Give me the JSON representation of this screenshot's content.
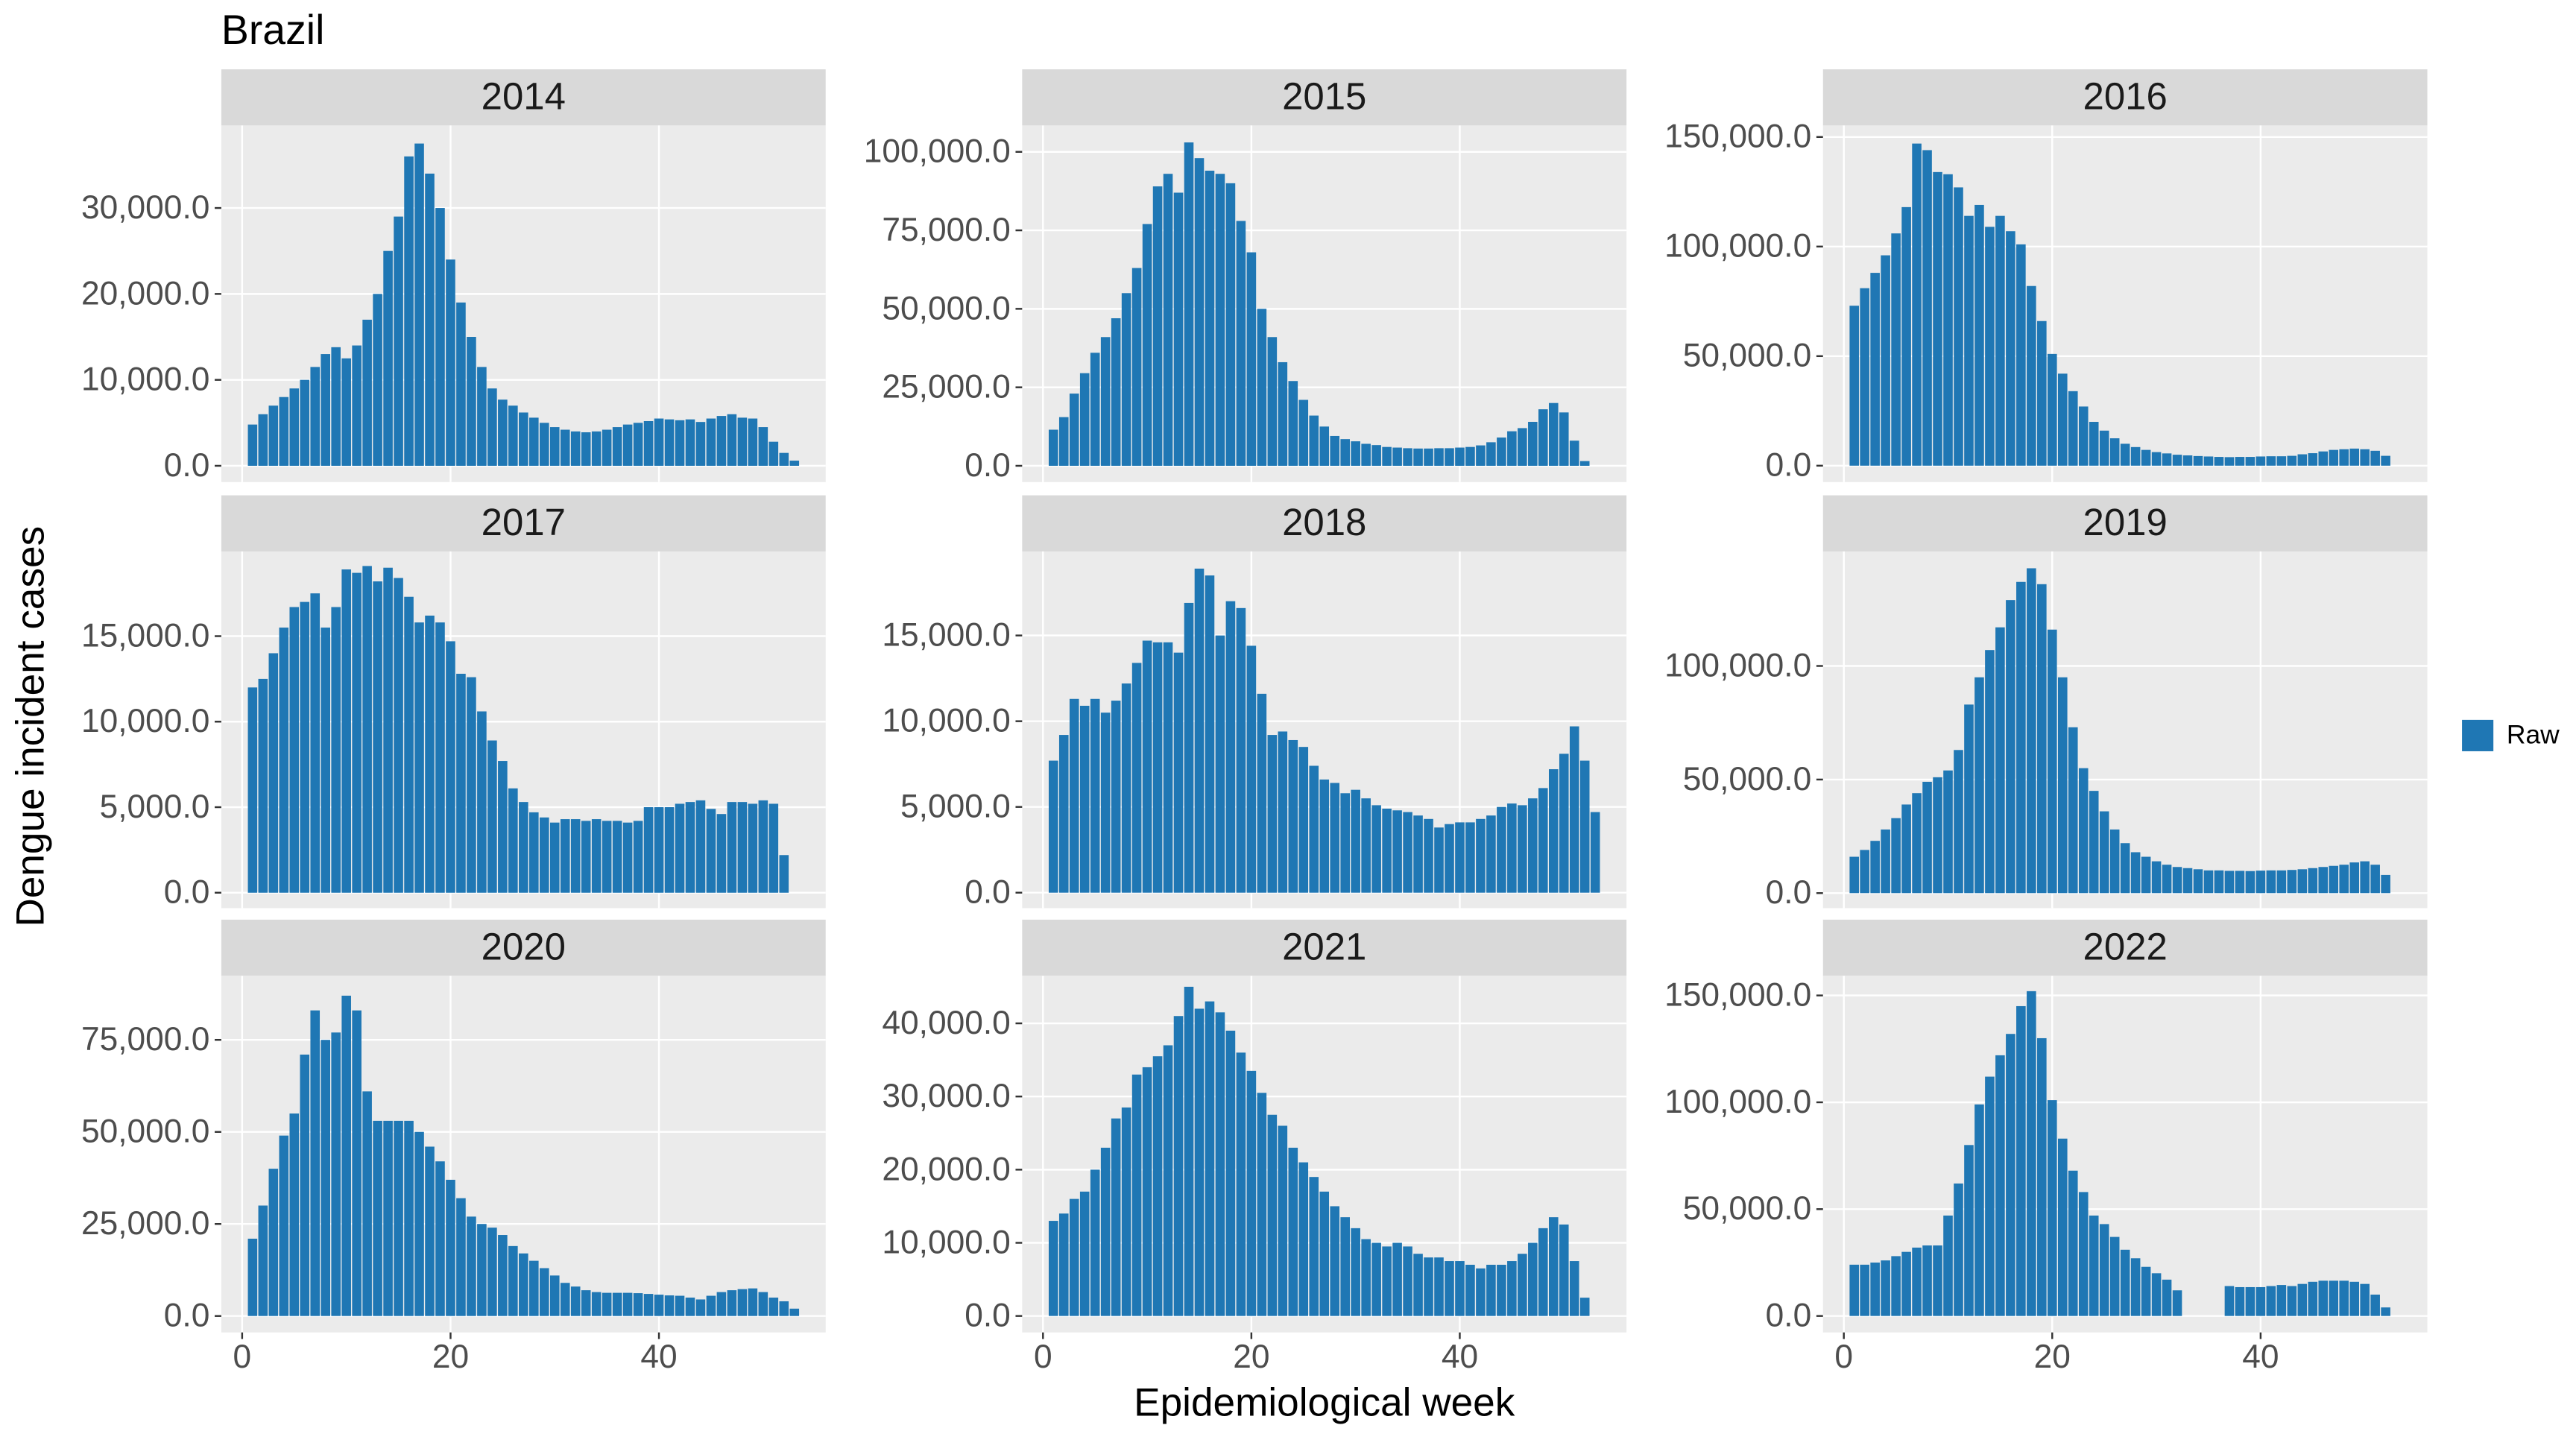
{
  "title": "Brazil",
  "x_label": "Epidemiological week",
  "y_label": "Dengue incident cases",
  "legend": {
    "labels": [
      "Raw"
    ],
    "colors": [
      "#1f77b4"
    ],
    "position": "right"
  },
  "chart_data": [
    {
      "type": "bar",
      "title": "2014",
      "x": [
        1,
        2,
        3,
        4,
        5,
        6,
        7,
        8,
        9,
        10,
        11,
        12,
        13,
        14,
        15,
        16,
        17,
        18,
        19,
        20,
        21,
        22,
        23,
        24,
        25,
        26,
        27,
        28,
        29,
        30,
        31,
        32,
        33,
        34,
        35,
        36,
        37,
        38,
        39,
        40,
        41,
        42,
        43,
        44,
        45,
        46,
        47,
        48,
        49,
        50,
        51,
        52,
        53
      ],
      "values": [
        4800,
        6000,
        7000,
        8000,
        9000,
        10000,
        11500,
        13000,
        13800,
        12500,
        14000,
        17000,
        20000,
        25000,
        29000,
        36000,
        37500,
        34000,
        30000,
        24000,
        19000,
        15000,
        11500,
        9000,
        7700,
        7000,
        6200,
        5600,
        5000,
        4500,
        4200,
        4000,
        3900,
        4000,
        4200,
        4500,
        4800,
        5000,
        5200,
        5500,
        5400,
        5300,
        5400,
        5100,
        5500,
        5800,
        6000,
        5600,
        5500,
        4500,
        2800,
        1500,
        600
      ],
      "xlim": [
        -2,
        56
      ],
      "xticks": [
        0,
        20,
        40
      ],
      "ylim": [
        -1900,
        39600
      ],
      "yticks": [
        {
          "value": 0,
          "label": "0.0"
        },
        {
          "value": 10000,
          "label": "10,000.0"
        },
        {
          "value": 20000,
          "label": "20,000.0"
        },
        {
          "value": 30000,
          "label": "30,000.0"
        }
      ]
    },
    {
      "type": "bar",
      "title": "2015",
      "x": [
        1,
        2,
        3,
        4,
        5,
        6,
        7,
        8,
        9,
        10,
        11,
        12,
        13,
        14,
        15,
        16,
        17,
        18,
        19,
        20,
        21,
        22,
        23,
        24,
        25,
        26,
        27,
        28,
        29,
        30,
        31,
        32,
        33,
        34,
        35,
        36,
        37,
        38,
        39,
        40,
        41,
        42,
        43,
        44,
        45,
        46,
        47,
        48,
        49,
        50,
        51,
        52
      ],
      "values": [
        11500,
        15500,
        23000,
        29500,
        36000,
        41000,
        47000,
        55000,
        63000,
        77000,
        89000,
        93000,
        87000,
        103000,
        98000,
        94000,
        93000,
        90000,
        78000,
        68000,
        50000,
        41000,
        33000,
        27000,
        21000,
        16000,
        12500,
        9500,
        8500,
        7800,
        7000,
        6600,
        6000,
        5800,
        5600,
        5500,
        5500,
        5600,
        5600,
        5800,
        6000,
        6500,
        7500,
        9000,
        11000,
        12000,
        14000,
        18000,
        20000,
        17000,
        8000,
        1500
      ],
      "xlim": [
        -2,
        56
      ],
      "xticks": [
        0,
        20,
        40
      ],
      "ylim": [
        -5200,
        108400
      ],
      "yticks": [
        {
          "value": 0,
          "label": "0.0"
        },
        {
          "value": 25000,
          "label": "25,000.0"
        },
        {
          "value": 50000,
          "label": "50,000.0"
        },
        {
          "value": 75000,
          "label": "75,000.0"
        },
        {
          "value": 100000,
          "label": "100,000.0"
        }
      ]
    },
    {
      "type": "bar",
      "title": "2016",
      "x": [
        1,
        2,
        3,
        4,
        5,
        6,
        7,
        8,
        9,
        10,
        11,
        12,
        13,
        14,
        15,
        16,
        17,
        18,
        19,
        20,
        21,
        22,
        23,
        24,
        25,
        26,
        27,
        28,
        29,
        30,
        31,
        32,
        33,
        34,
        35,
        36,
        37,
        38,
        39,
        40,
        41,
        42,
        43,
        44,
        45,
        46,
        47,
        48,
        49,
        50,
        51,
        52
      ],
      "values": [
        73000,
        81000,
        88000,
        96000,
        106000,
        118000,
        147000,
        144000,
        134000,
        133000,
        127000,
        114000,
        119000,
        109000,
        114000,
        107000,
        101000,
        82000,
        66000,
        51000,
        42000,
        34000,
        27000,
        20000,
        16000,
        12500,
        10000,
        8500,
        7200,
        6200,
        5600,
        5000,
        4700,
        4400,
        4200,
        4000,
        3900,
        4000,
        4000,
        4200,
        4300,
        4300,
        4500,
        5200,
        5700,
        6500,
        7200,
        7500,
        7800,
        7500,
        6800,
        4500
      ],
      "xlim": [
        -2,
        56
      ],
      "xticks": [
        0,
        20,
        40
      ],
      "ylim": [
        -7500,
        155250
      ],
      "yticks": [
        {
          "value": 0,
          "label": "0.0"
        },
        {
          "value": 50000,
          "label": "50,000.0"
        },
        {
          "value": 100000,
          "label": "100,000.0"
        },
        {
          "value": 150000,
          "label": "150,000.0"
        }
      ]
    },
    {
      "type": "bar",
      "title": "2017",
      "x": [
        1,
        2,
        3,
        4,
        5,
        6,
        7,
        8,
        9,
        10,
        11,
        12,
        13,
        14,
        15,
        16,
        17,
        18,
        19,
        20,
        21,
        22,
        23,
        24,
        25,
        26,
        27,
        28,
        29,
        30,
        31,
        32,
        33,
        34,
        35,
        36,
        37,
        38,
        39,
        40,
        41,
        42,
        43,
        44,
        45,
        46,
        47,
        48,
        49,
        50,
        51,
        52
      ],
      "values": [
        12000,
        12500,
        14000,
        15500,
        16700,
        17000,
        17500,
        15500,
        16700,
        18900,
        18700,
        19100,
        18200,
        19000,
        18400,
        17300,
        15800,
        16200,
        15800,
        14700,
        12800,
        12600,
        10600,
        8900,
        7700,
        6100,
        5300,
        4700,
        4400,
        4100,
        4300,
        4300,
        4200,
        4300,
        4200,
        4200,
        4100,
        4200,
        5000,
        5000,
        5000,
        5200,
        5300,
        5400,
        4900,
        4600,
        5300,
        5300,
        5200,
        5400,
        5200,
        2200
      ],
      "xlim": [
        -2,
        56
      ],
      "xticks": [
        0,
        20,
        40
      ],
      "ylim": [
        -900,
        19950
      ],
      "yticks": [
        {
          "value": 0,
          "label": "0.0"
        },
        {
          "value": 5000,
          "label": "5,000.0"
        },
        {
          "value": 10000,
          "label": "10,000.0"
        },
        {
          "value": 15000,
          "label": "15,000.0"
        }
      ]
    },
    {
      "type": "bar",
      "title": "2018",
      "x": [
        1,
        2,
        3,
        4,
        5,
        6,
        7,
        8,
        9,
        10,
        11,
        12,
        13,
        14,
        15,
        16,
        17,
        18,
        19,
        20,
        21,
        22,
        23,
        24,
        25,
        26,
        27,
        28,
        29,
        30,
        31,
        32,
        33,
        34,
        35,
        36,
        37,
        38,
        39,
        40,
        41,
        42,
        43,
        44,
        45,
        46,
        47,
        48,
        49,
        50,
        51,
        52,
        53
      ],
      "values": [
        7700,
        9200,
        11300,
        10900,
        11300,
        10500,
        11200,
        12200,
        13400,
        14700,
        14600,
        14600,
        14000,
        16900,
        18900,
        18500,
        15000,
        17000,
        16600,
        14400,
        11600,
        9200,
        9400,
        8900,
        8500,
        7400,
        6600,
        6400,
        5800,
        6000,
        5500,
        5100,
        4900,
        4800,
        4700,
        4500,
        4300,
        3800,
        4000,
        4100,
        4100,
        4300,
        4500,
        5000,
        5200,
        5100,
        5500,
        6100,
        7200,
        8100,
        9700,
        7700,
        4700
      ],
      "xlim": [
        -2,
        56
      ],
      "xticks": [
        0,
        20,
        40
      ],
      "ylim": [
        -900,
        19900
      ],
      "yticks": [
        {
          "value": 0,
          "label": "0.0"
        },
        {
          "value": 5000,
          "label": "5,000.0"
        },
        {
          "value": 10000,
          "label": "10,000.0"
        },
        {
          "value": 15000,
          "label": "15,000.0"
        }
      ]
    },
    {
      "type": "bar",
      "title": "2019",
      "x": [
        1,
        2,
        3,
        4,
        5,
        6,
        7,
        8,
        9,
        10,
        11,
        12,
        13,
        14,
        15,
        16,
        17,
        18,
        19,
        20,
        21,
        22,
        23,
        24,
        25,
        26,
        27,
        28,
        29,
        30,
        31,
        32,
        33,
        34,
        35,
        36,
        37,
        38,
        39,
        40,
        41,
        42,
        43,
        44,
        45,
        46,
        47,
        48,
        49,
        50,
        51,
        52
      ],
      "values": [
        16000,
        19000,
        23000,
        28000,
        33000,
        39000,
        44000,
        49000,
        51000,
        54000,
        63000,
        83000,
        95000,
        107000,
        117000,
        129000,
        137000,
        143000,
        136000,
        116000,
        95000,
        73000,
        55000,
        45000,
        36000,
        28000,
        22000,
        18000,
        16000,
        14000,
        12500,
        11500,
        11000,
        10500,
        10000,
        10000,
        9800,
        9800,
        9700,
        9900,
        10000,
        10000,
        10200,
        10500,
        11000,
        11500,
        12000,
        12500,
        13500,
        14000,
        12500,
        8000
      ],
      "xlim": [
        -2,
        56
      ],
      "xticks": [
        0,
        20,
        40
      ],
      "ylim": [
        -6600,
        150400
      ],
      "yticks": [
        {
          "value": 0,
          "label": "0.0"
        },
        {
          "value": 50000,
          "label": "50,000.0"
        },
        {
          "value": 100000,
          "label": "100,000.0"
        }
      ]
    },
    {
      "type": "bar",
      "title": "2020",
      "x": [
        1,
        2,
        3,
        4,
        5,
        6,
        7,
        8,
        9,
        10,
        11,
        12,
        13,
        14,
        15,
        16,
        17,
        18,
        19,
        20,
        21,
        22,
        23,
        24,
        25,
        26,
        27,
        28,
        29,
        30,
        31,
        32,
        33,
        34,
        35,
        36,
        37,
        38,
        39,
        40,
        41,
        42,
        43,
        44,
        45,
        46,
        47,
        48,
        49,
        50,
        51,
        52,
        53
      ],
      "values": [
        21000,
        30000,
        40000,
        49000,
        55000,
        71000,
        83000,
        75000,
        77000,
        87000,
        83000,
        61000,
        53000,
        53000,
        53000,
        53000,
        50000,
        46000,
        42000,
        37000,
        32000,
        27000,
        25000,
        24000,
        22000,
        19000,
        17000,
        15000,
        13000,
        11000,
        9000,
        8000,
        7000,
        6500,
        6300,
        6300,
        6300,
        6200,
        6000,
        5800,
        5600,
        5500,
        5000,
        4500,
        5500,
        6500,
        7000,
        7300,
        7500,
        6500,
        5000,
        4000,
        2000
      ],
      "xlim": [
        -2,
        56
      ],
      "xticks": [
        0,
        20,
        40
      ],
      "ylim": [
        -4460,
        92400
      ],
      "yticks": [
        {
          "value": 0,
          "label": "0.0"
        },
        {
          "value": 25000,
          "label": "25,000.0"
        },
        {
          "value": 50000,
          "label": "50,000.0"
        },
        {
          "value": 75000,
          "label": "75,000.0"
        }
      ]
    },
    {
      "type": "bar",
      "title": "2021",
      "x": [
        1,
        2,
        3,
        4,
        5,
        6,
        7,
        8,
        9,
        10,
        11,
        12,
        13,
        14,
        15,
        16,
        17,
        18,
        19,
        20,
        21,
        22,
        23,
        24,
        25,
        26,
        27,
        28,
        29,
        30,
        31,
        32,
        33,
        34,
        35,
        36,
        37,
        38,
        39,
        40,
        41,
        42,
        43,
        44,
        45,
        46,
        47,
        48,
        49,
        50,
        51,
        52
      ],
      "values": [
        13000,
        14000,
        16000,
        17000,
        20000,
        23000,
        27000,
        28500,
        33000,
        34000,
        35500,
        37000,
        41000,
        45000,
        42000,
        43000,
        41500,
        39000,
        36000,
        33500,
        30500,
        27500,
        26000,
        23000,
        21000,
        19000,
        17000,
        15000,
        13500,
        12000,
        10500,
        10000,
        9500,
        10000,
        9500,
        8500,
        8000,
        8000,
        7500,
        7500,
        7000,
        6500,
        7000,
        7000,
        7500,
        8500,
        10000,
        12000,
        13500,
        12500,
        7500,
        2500
      ],
      "xlim": [
        -2,
        56
      ],
      "xticks": [
        0,
        20,
        40
      ],
      "ylim": [
        -2250,
        46500
      ],
      "yticks": [
        {
          "value": 0,
          "label": "0.0"
        },
        {
          "value": 10000,
          "label": "10,000.0"
        },
        {
          "value": 20000,
          "label": "20,000.0"
        },
        {
          "value": 30000,
          "label": "30,000.0"
        },
        {
          "value": 40000,
          "label": "40,000.0"
        }
      ]
    },
    {
      "type": "bar",
      "title": "2022",
      "x": [
        1,
        2,
        3,
        4,
        5,
        6,
        7,
        8,
        9,
        10,
        11,
        12,
        13,
        14,
        15,
        16,
        17,
        18,
        19,
        20,
        21,
        22,
        23,
        24,
        25,
        26,
        27,
        28,
        29,
        30,
        31,
        32,
        37,
        38,
        39,
        40,
        41,
        42,
        43,
        44,
        45,
        46,
        47,
        48,
        49,
        50,
        51,
        52
      ],
      "values": [
        24000,
        24000,
        25000,
        26000,
        28000,
        30000,
        32000,
        33000,
        33000,
        47000,
        62000,
        80000,
        99000,
        112000,
        122000,
        132000,
        145000,
        152000,
        130000,
        101000,
        83000,
        68000,
        58000,
        47000,
        43000,
        37000,
        31000,
        27000,
        23000,
        20000,
        17000,
        12000,
        14000,
        13500,
        13500,
        13500,
        14000,
        14500,
        14000,
        15000,
        16000,
        16500,
        16500,
        16500,
        16000,
        15000,
        10000,
        4000
      ],
      "xlim": [
        -2,
        56
      ],
      "xticks": [
        0,
        20,
        40
      ],
      "ylim": [
        -7700,
        159200
      ],
      "yticks": [
        {
          "value": 0,
          "label": "0.0"
        },
        {
          "value": 50000,
          "label": "50,000.0"
        },
        {
          "value": 100000,
          "label": "100,000.0"
        },
        {
          "value": 150000,
          "label": "150,000.0"
        }
      ]
    }
  ]
}
